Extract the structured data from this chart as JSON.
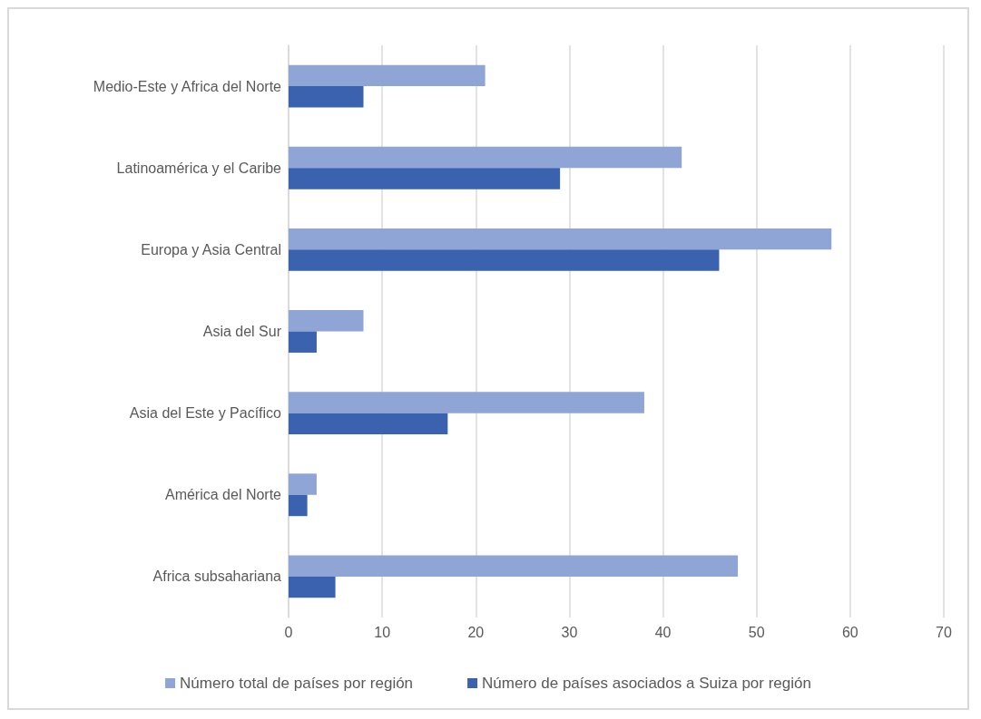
{
  "chart_data": {
    "type": "bar",
    "orientation": "horizontal",
    "categories": [
      "Medio-Este y Africa del Norte",
      "Latinoamérica y el Caribe",
      "Europa y Asia Central",
      "Asia del Sur",
      "Asia del Este y Pacífico",
      "América del Norte",
      "Africa subsahariana"
    ],
    "series": [
      {
        "name": "Número total de países por región",
        "color": "#8fa5d6",
        "values": [
          21,
          42,
          58,
          8,
          38,
          3,
          48
        ]
      },
      {
        "name": "Número de países asociados a Suiza por región",
        "color": "#3a62ae",
        "values": [
          8,
          29,
          46,
          3,
          17,
          2,
          5
        ]
      }
    ],
    "xlim": [
      0,
      70
    ],
    "xticks": [
      0,
      10,
      20,
      30,
      40,
      50,
      60,
      70
    ],
    "grid": "x",
    "legend": "bottom"
  }
}
